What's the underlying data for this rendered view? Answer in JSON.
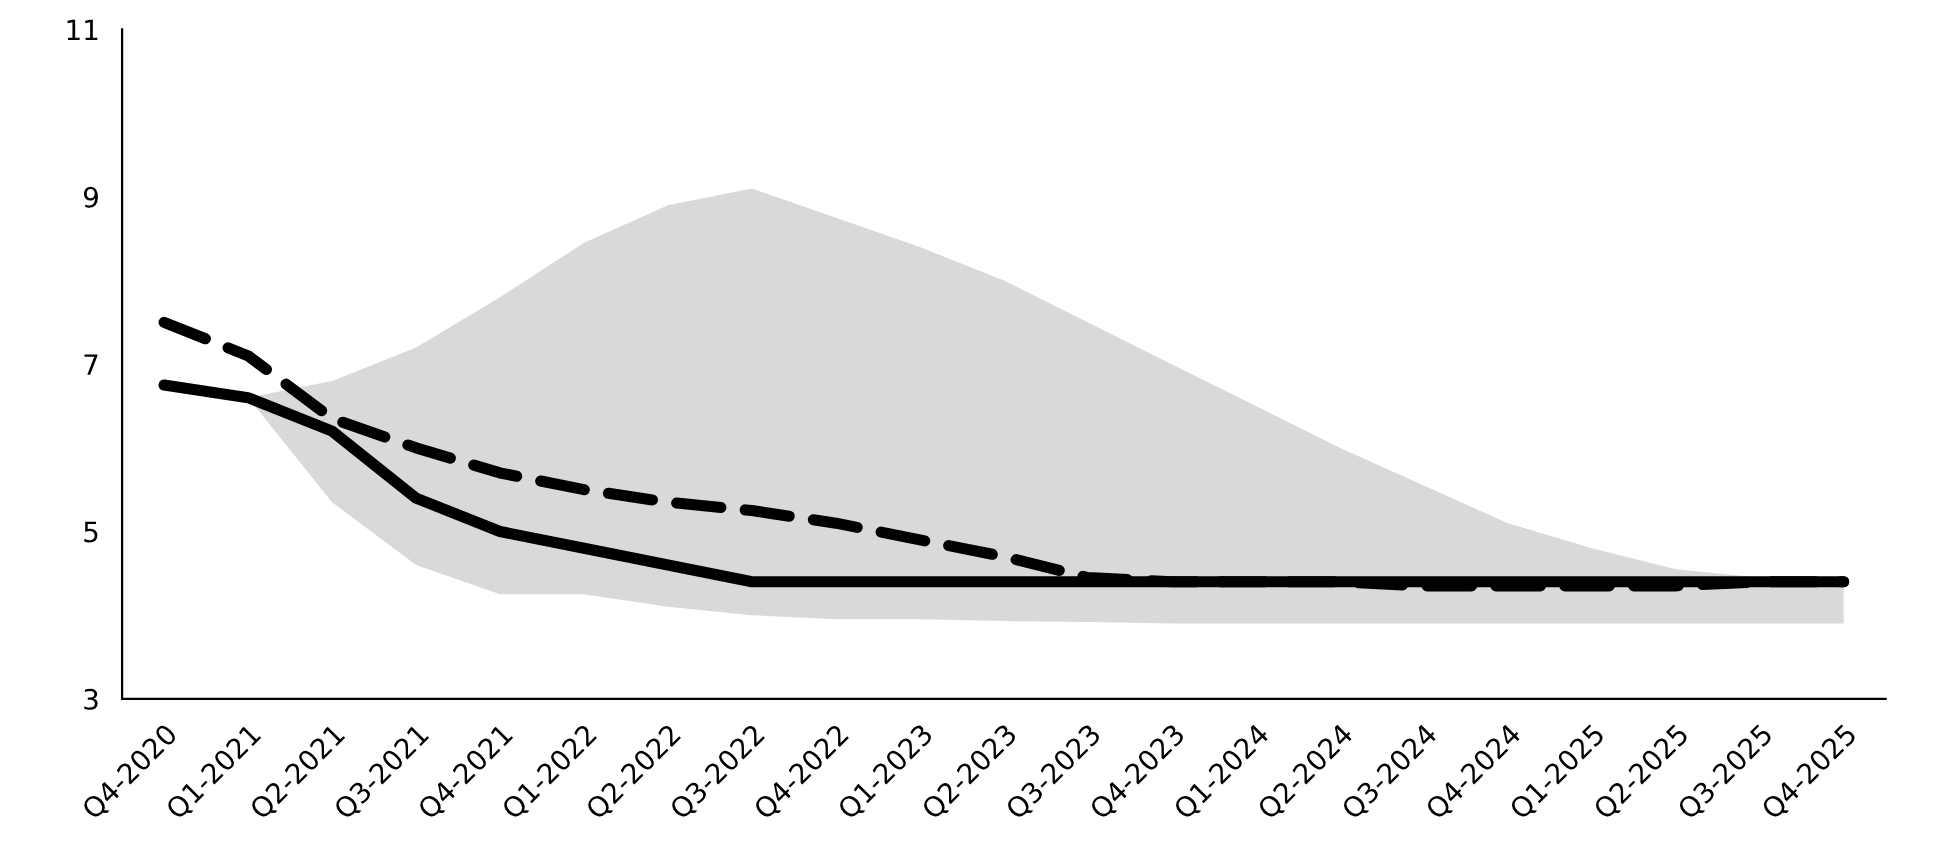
{
  "chart_data": {
    "type": "line",
    "categories": [
      "Q4-2020",
      "Q1-2021",
      "Q2-2021",
      "Q3-2021",
      "Q4-2021",
      "Q1-2022",
      "Q2-2022",
      "Q3-2022",
      "Q4-2022",
      "Q1-2023",
      "Q2-2023",
      "Q3-2023",
      "Q4-2023",
      "Q1-2024",
      "Q2-2024",
      "Q3-2024",
      "Q4-2024",
      "Q1-2025",
      "Q2-2025",
      "Q3-2025",
      "Q4-2025"
    ],
    "ylim": [
      3,
      11
    ],
    "yticks": [
      3,
      5,
      7,
      9,
      11
    ],
    "grid": false,
    "legend": false,
    "series": [
      {
        "color": "#000000",
        "line_style": "solid",
        "values": [
          6.75,
          6.6,
          6.2,
          5.4,
          5.0,
          4.8,
          4.6,
          4.4,
          4.4,
          4.4,
          4.4,
          4.4,
          4.4,
          4.4,
          4.4,
          4.4,
          4.4,
          4.4,
          4.4,
          4.4,
          4.4
        ],
        "lower": [
          null,
          6.6,
          5.35,
          4.6,
          4.25,
          4.25,
          4.1,
          4.0,
          3.95,
          3.95,
          3.93,
          3.92,
          3.9,
          3.9,
          3.9,
          3.9,
          3.9,
          3.9,
          3.9,
          3.9,
          3.9
        ],
        "upper": [
          null,
          6.6,
          6.8,
          7.2,
          7.8,
          8.45,
          8.9,
          9.1,
          8.75,
          8.4,
          8.0,
          7.5,
          7.0,
          6.5,
          6.0,
          5.55,
          5.1,
          4.8,
          4.55,
          4.45,
          4.4
        ]
      },
      {
        "color": "#000000",
        "line_style": "dashed",
        "values": [
          7.5,
          7.1,
          6.35,
          6.0,
          5.7,
          5.5,
          5.35,
          5.25,
          5.1,
          4.9,
          4.7,
          4.45,
          4.4,
          4.4,
          4.4,
          4.35,
          4.35,
          4.35,
          4.35,
          4.4,
          4.4
        ]
      }
    ]
  }
}
